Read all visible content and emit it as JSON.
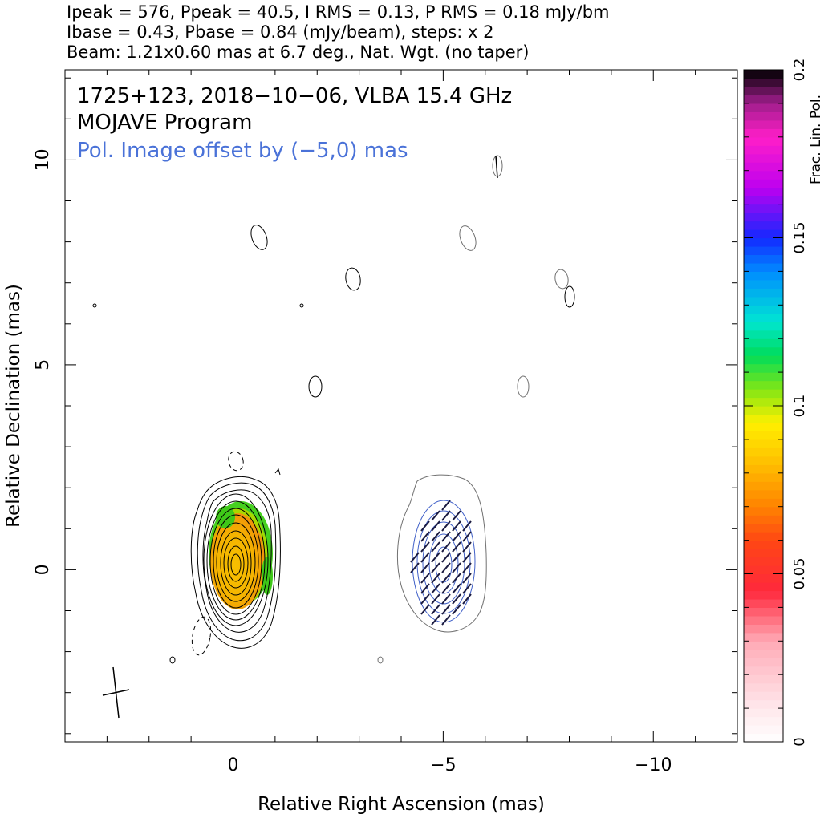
{
  "header": {
    "line1": "Ipeak = 576, Ppeak = 40.5, I RMS = 0.13, P RMS = 0.18 mJy/bm",
    "line2": "Ibase = 0.43, Pbase = 0.84 (mJy/beam), steps: x 2",
    "line3": "Beam: 1.21x0.60 mas at 6.7 deg., Nat. Wgt. (no taper)"
  },
  "plot": {
    "title_line1": "1725+123, 2018−10−06, VLBA 15.4 GHz",
    "title_line2": "MOJAVE Program",
    "title_line3": "Pol. Image offset by (−5,0) mas",
    "title_line3_color": "#4a72d8",
    "xlabel": "Relative Right Ascension (mas)",
    "ylabel": "Relative Declination (mas)",
    "x_ticks": [
      "0",
      "−5",
      "−10"
    ],
    "y_ticks": [
      "0",
      "5",
      "10"
    ],
    "colorbar_label": "Frac. Lin. Pol.",
    "colorbar_ticks": [
      "0",
      "0.05",
      "0.1",
      "0.15",
      "0.2"
    ]
  },
  "chart_data": {
    "type": "heatmap",
    "title": "1725+123, 2018-10-06, VLBA 15.4 GHz",
    "xlabel": "Relative Right Ascension (mas)",
    "ylabel": "Relative Declination (mas)",
    "xlim": [
      4,
      -12
    ],
    "ylim": [
      -4.2,
      12.2
    ],
    "x_ticks": [
      0,
      -5,
      -10
    ],
    "y_ticks": [
      0,
      5,
      10
    ],
    "colorbar": {
      "label": "Frac. Lin. Pol.",
      "range": [
        0,
        0.2
      ],
      "ticks": [
        0,
        0.05,
        0.1,
        0.15,
        0.2
      ]
    },
    "total_intensity": {
      "peak_mJy_per_beam": 576,
      "base_contour_mJy_per_beam": 0.43,
      "rms_mJy_per_beam": 0.13,
      "contour_step_factor": 2,
      "core_position_mas": [
        0,
        0
      ]
    },
    "polarization": {
      "peak_mJy_per_beam": 40.5,
      "base_contour_mJy_per_beam": 0.84,
      "rms_mJy_per_beam": 0.18,
      "image_offset_mas": [
        -5,
        0
      ],
      "core_frac_pol_range": [
        0.05,
        0.1
      ]
    },
    "beam": {
      "major_mas": 1.21,
      "minor_mas": 0.6,
      "pa_deg": 6.7,
      "weighting": "Nat. Wgt. (no taper)"
    },
    "grid": false
  }
}
